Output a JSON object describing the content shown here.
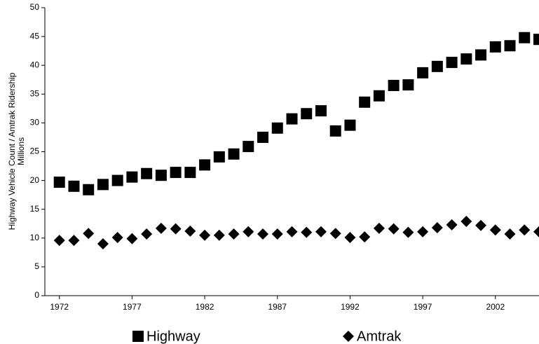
{
  "chart_data": {
    "type": "scatter",
    "y_label": "Highway Vehicle Count / Amtrak Ridership",
    "y_label_unit": "Millions",
    "x": [
      1972,
      1973,
      1974,
      1975,
      1976,
      1977,
      1978,
      1979,
      1980,
      1981,
      1982,
      1983,
      1984,
      1985,
      1986,
      1987,
      1988,
      1989,
      1990,
      1991,
      1992,
      1993,
      1994,
      1995,
      1996,
      1997,
      1998,
      1999,
      2000,
      2001,
      2002,
      2003,
      2004,
      2005
    ],
    "series": [
      {
        "name": "Highway",
        "color": "#000000",
        "marker": "square",
        "values": [
          19.7,
          19.0,
          18.4,
          19.3,
          20.0,
          20.6,
          21.2,
          20.9,
          21.4,
          21.4,
          22.7,
          24.1,
          24.6,
          25.9,
          27.5,
          29.1,
          30.7,
          31.6,
          32.1,
          28.6,
          29.6,
          33.6,
          34.7,
          36.5,
          36.6,
          38.7,
          39.8,
          40.5,
          41.1,
          41.8,
          43.2,
          43.4,
          44.8,
          44.5
        ]
      },
      {
        "name": "Amtrak",
        "color": "#000000",
        "marker": "diamond",
        "values": [
          9.6,
          9.6,
          10.8,
          9.0,
          10.1,
          9.9,
          10.7,
          11.7,
          11.6,
          11.2,
          10.5,
          10.5,
          10.7,
          11.1,
          10.7,
          10.7,
          11.1,
          11.0,
          11.1,
          10.8,
          10.1,
          10.2,
          11.7,
          11.6,
          11.0,
          11.1,
          11.8,
          12.3,
          12.9,
          12.2,
          11.4,
          10.7,
          11.4,
          11.1
        ]
      }
    ],
    "xlim": [
      1971,
      2005
    ],
    "xticks": [
      1972,
      1977,
      1982,
      1987,
      1992,
      1997,
      2002
    ],
    "ylim": [
      0,
      50
    ],
    "yticks": [
      0,
      5,
      10,
      15,
      20,
      25,
      30,
      35,
      40,
      45,
      50
    ],
    "legend": "bottom",
    "grid": false
  }
}
